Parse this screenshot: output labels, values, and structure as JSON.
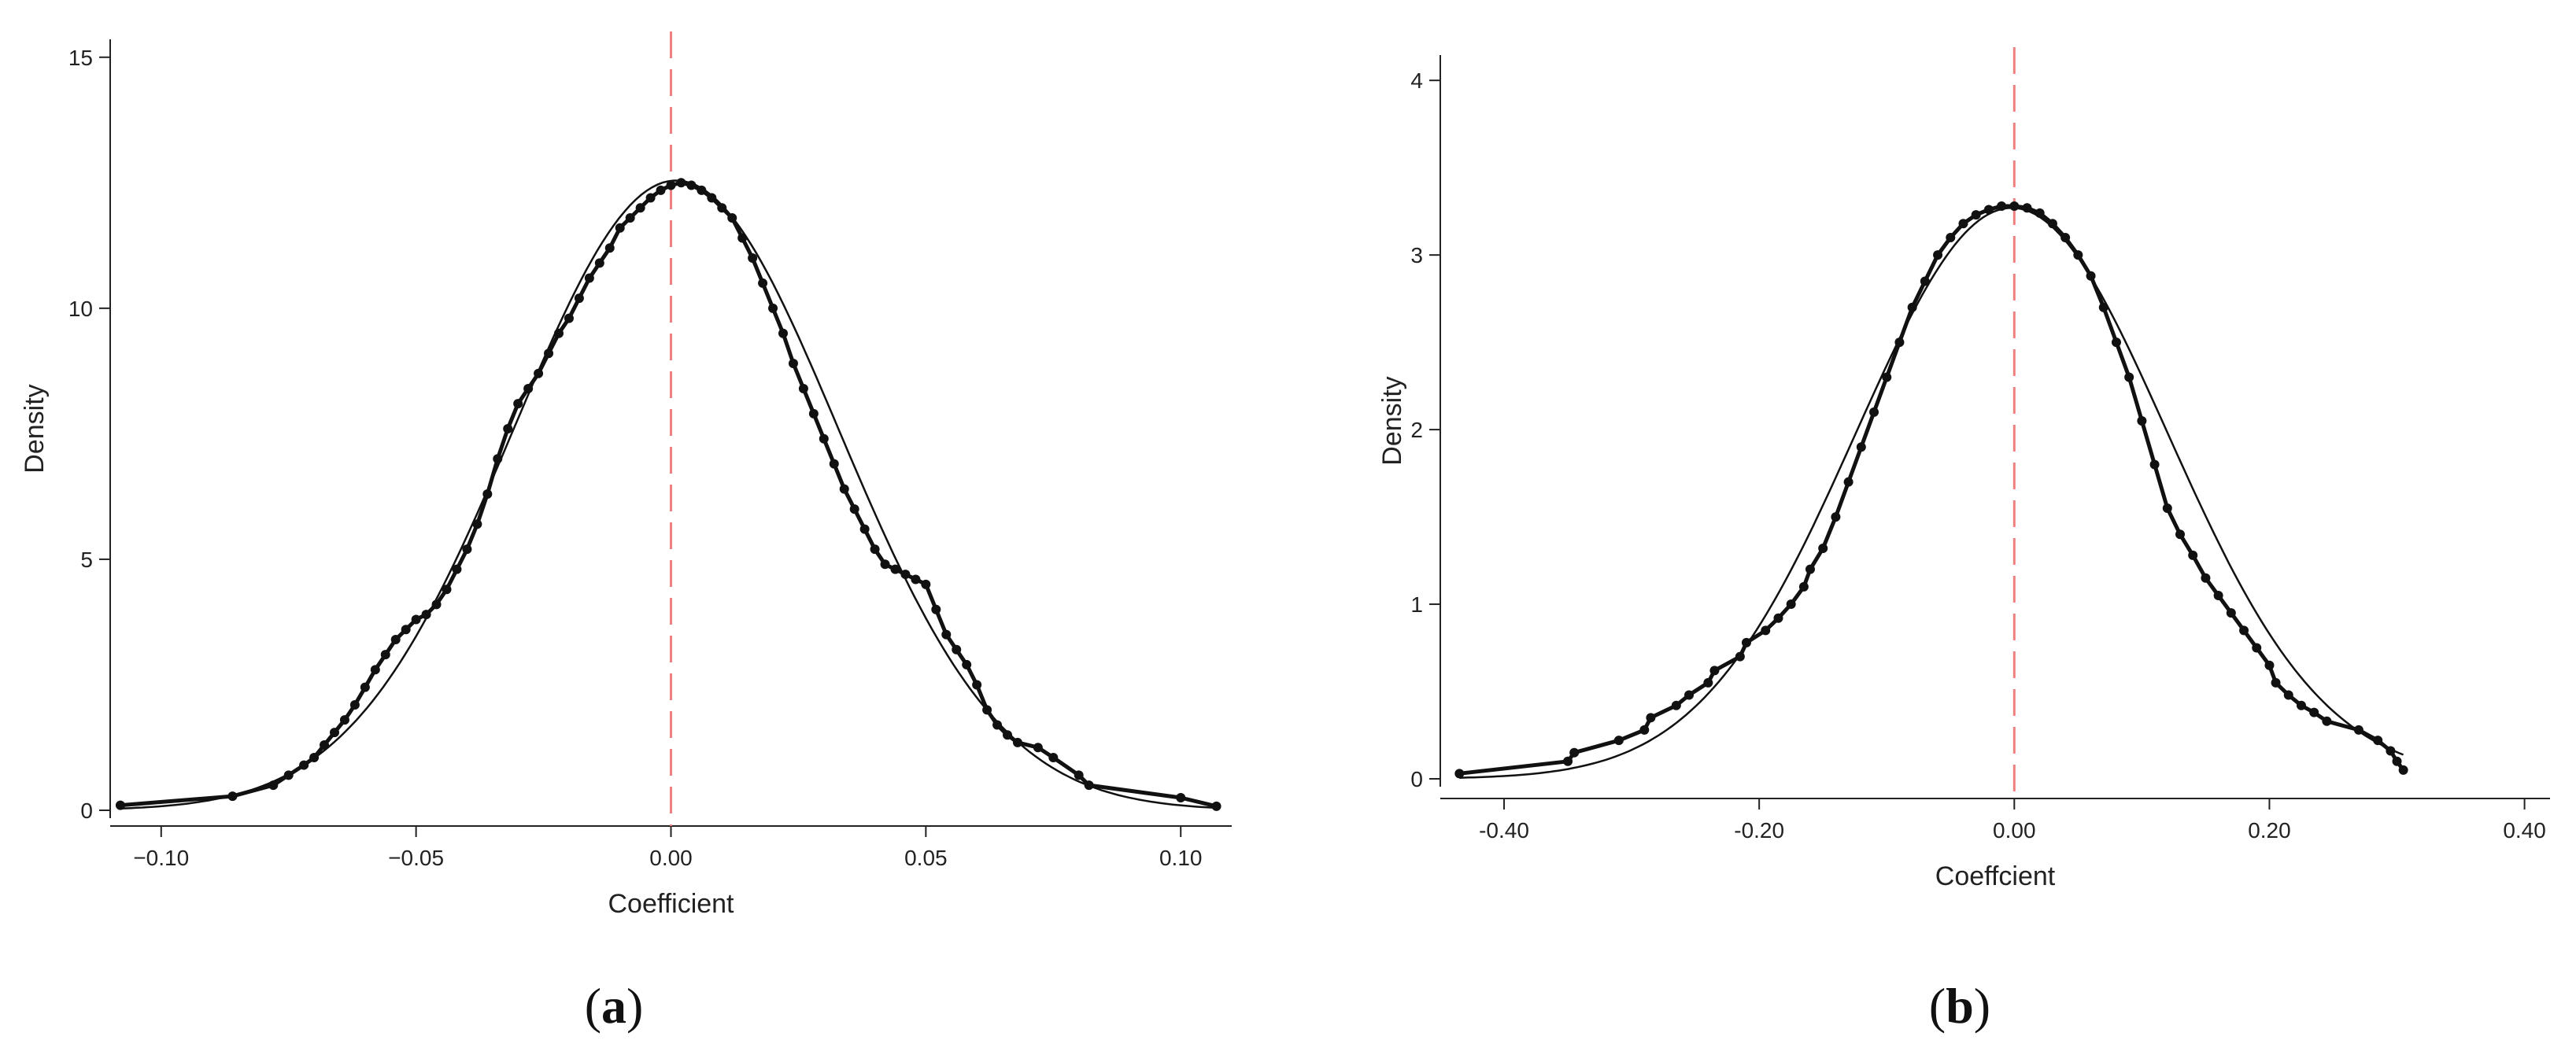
{
  "chart_data": [
    {
      "type": "scatter",
      "panel_label": "(a)",
      "panel_letter": "a",
      "xlabel": "Coefficient",
      "ylabel": "Density",
      "xlim": [
        -0.11,
        0.11
      ],
      "ylim": [
        0,
        15.2
      ],
      "xticks": [
        -0.1,
        -0.05,
        0.0,
        0.05,
        0.1
      ],
      "xtick_labels": [
        "−0.10",
        "−0.05",
        "0.00",
        "0.05",
        "0.10"
      ],
      "yticks": [
        0,
        5,
        10,
        15
      ],
      "ytick_labels": [
        "0",
        "5",
        "10",
        "15"
      ],
      "reference_line_x": 0,
      "reference_line_color": "#f08080",
      "normal_curve": {
        "mean": 0.001,
        "sd": 0.0318
      },
      "points": [
        [
          -0.108,
          0.1
        ],
        [
          -0.086,
          0.28
        ],
        [
          -0.078,
          0.5
        ],
        [
          -0.075,
          0.7
        ],
        [
          -0.072,
          0.9
        ],
        [
          -0.07,
          1.05
        ],
        [
          -0.068,
          1.3
        ],
        [
          -0.066,
          1.55
        ],
        [
          -0.064,
          1.8
        ],
        [
          -0.062,
          2.1
        ],
        [
          -0.06,
          2.45
        ],
        [
          -0.058,
          2.8
        ],
        [
          -0.056,
          3.1
        ],
        [
          -0.054,
          3.4
        ],
        [
          -0.052,
          3.6
        ],
        [
          -0.05,
          3.8
        ],
        [
          -0.048,
          3.9
        ],
        [
          -0.046,
          4.1
        ],
        [
          -0.044,
          4.4
        ],
        [
          -0.042,
          4.8
        ],
        [
          -0.04,
          5.2
        ],
        [
          -0.038,
          5.7
        ],
        [
          -0.036,
          6.3
        ],
        [
          -0.034,
          7.0
        ],
        [
          -0.032,
          7.6
        ],
        [
          -0.03,
          8.1
        ],
        [
          -0.028,
          8.4
        ],
        [
          -0.026,
          8.7
        ],
        [
          -0.024,
          9.1
        ],
        [
          -0.022,
          9.5
        ],
        [
          -0.02,
          9.8
        ],
        [
          -0.018,
          10.2
        ],
        [
          -0.016,
          10.6
        ],
        [
          -0.014,
          10.9
        ],
        [
          -0.012,
          11.2
        ],
        [
          -0.01,
          11.6
        ],
        [
          -0.008,
          11.8
        ],
        [
          -0.006,
          12.0
        ],
        [
          -0.004,
          12.2
        ],
        [
          -0.002,
          12.35
        ],
        [
          0.0,
          12.45
        ],
        [
          0.002,
          12.5
        ],
        [
          0.004,
          12.45
        ],
        [
          0.006,
          12.35
        ],
        [
          0.008,
          12.2
        ],
        [
          0.01,
          12.0
        ],
        [
          0.012,
          11.8
        ],
        [
          0.014,
          11.4
        ],
        [
          0.016,
          11.0
        ],
        [
          0.018,
          10.5
        ],
        [
          0.02,
          10.0
        ],
        [
          0.022,
          9.5
        ],
        [
          0.024,
          8.9
        ],
        [
          0.026,
          8.4
        ],
        [
          0.028,
          7.9
        ],
        [
          0.03,
          7.4
        ],
        [
          0.032,
          6.9
        ],
        [
          0.034,
          6.4
        ],
        [
          0.036,
          6.0
        ],
        [
          0.038,
          5.6
        ],
        [
          0.04,
          5.2
        ],
        [
          0.042,
          4.9
        ],
        [
          0.044,
          4.8
        ],
        [
          0.046,
          4.7
        ],
        [
          0.048,
          4.6
        ],
        [
          0.05,
          4.5
        ],
        [
          0.052,
          4.0
        ],
        [
          0.054,
          3.5
        ],
        [
          0.056,
          3.2
        ],
        [
          0.058,
          2.9
        ],
        [
          0.06,
          2.5
        ],
        [
          0.062,
          2.0
        ],
        [
          0.064,
          1.7
        ],
        [
          0.066,
          1.5
        ],
        [
          0.068,
          1.35
        ],
        [
          0.072,
          1.25
        ],
        [
          0.075,
          1.05
        ],
        [
          0.08,
          0.7
        ],
        [
          0.082,
          0.5
        ],
        [
          0.1,
          0.25
        ],
        [
          0.107,
          0.08
        ]
      ]
    },
    {
      "type": "scatter",
      "panel_label": "(b)",
      "panel_letter": "b",
      "xlabel": "Coeffcient",
      "ylabel": "Density",
      "xlim": [
        -0.45,
        0.42
      ],
      "ylim": [
        0,
        4.1
      ],
      "xticks": [
        -0.4,
        -0.2,
        0.0,
        0.2,
        0.4
      ],
      "xtick_labels": [
        "-0.40",
        "-0.20",
        "0.00",
        "0.20",
        "0.40"
      ],
      "yticks": [
        0,
        1,
        2,
        3,
        4
      ],
      "ytick_labels": [
        "0",
        "1",
        "2",
        "3",
        "4"
      ],
      "reference_line_x": 0,
      "reference_line_color": "#f08080",
      "normal_curve": {
        "mean": -0.002,
        "sd": 0.122
      },
      "points": [
        [
          -0.435,
          0.03
        ],
        [
          -0.35,
          0.1
        ],
        [
          -0.345,
          0.15
        ],
        [
          -0.31,
          0.22
        ],
        [
          -0.29,
          0.28
        ],
        [
          -0.285,
          0.35
        ],
        [
          -0.265,
          0.42
        ],
        [
          -0.255,
          0.48
        ],
        [
          -0.24,
          0.55
        ],
        [
          -0.235,
          0.62
        ],
        [
          -0.215,
          0.7
        ],
        [
          -0.21,
          0.78
        ],
        [
          -0.195,
          0.85
        ],
        [
          -0.185,
          0.92
        ],
        [
          -0.175,
          1.0
        ],
        [
          -0.165,
          1.1
        ],
        [
          -0.16,
          1.2
        ],
        [
          -0.15,
          1.32
        ],
        [
          -0.14,
          1.5
        ],
        [
          -0.13,
          1.7
        ],
        [
          -0.12,
          1.9
        ],
        [
          -0.11,
          2.1
        ],
        [
          -0.1,
          2.3
        ],
        [
          -0.09,
          2.5
        ],
        [
          -0.08,
          2.7
        ],
        [
          -0.07,
          2.85
        ],
        [
          -0.06,
          3.0
        ],
        [
          -0.05,
          3.1
        ],
        [
          -0.04,
          3.18
        ],
        [
          -0.03,
          3.23
        ],
        [
          -0.02,
          3.26
        ],
        [
          -0.01,
          3.28
        ],
        [
          0.0,
          3.28
        ],
        [
          0.01,
          3.27
        ],
        [
          0.02,
          3.24
        ],
        [
          0.03,
          3.18
        ],
        [
          0.04,
          3.1
        ],
        [
          0.05,
          3.0
        ],
        [
          0.06,
          2.88
        ],
        [
          0.07,
          2.7
        ],
        [
          0.08,
          2.5
        ],
        [
          0.09,
          2.3
        ],
        [
          0.1,
          2.05
        ],
        [
          0.11,
          1.8
        ],
        [
          0.12,
          1.55
        ],
        [
          0.13,
          1.4
        ],
        [
          0.14,
          1.28
        ],
        [
          0.15,
          1.15
        ],
        [
          0.16,
          1.05
        ],
        [
          0.17,
          0.95
        ],
        [
          0.18,
          0.85
        ],
        [
          0.19,
          0.75
        ],
        [
          0.2,
          0.65
        ],
        [
          0.205,
          0.55
        ],
        [
          0.215,
          0.48
        ],
        [
          0.225,
          0.42
        ],
        [
          0.235,
          0.38
        ],
        [
          0.245,
          0.33
        ],
        [
          0.27,
          0.28
        ],
        [
          0.285,
          0.22
        ],
        [
          0.295,
          0.16
        ],
        [
          0.3,
          0.1
        ],
        [
          0.305,
          0.05
        ]
      ]
    }
  ]
}
